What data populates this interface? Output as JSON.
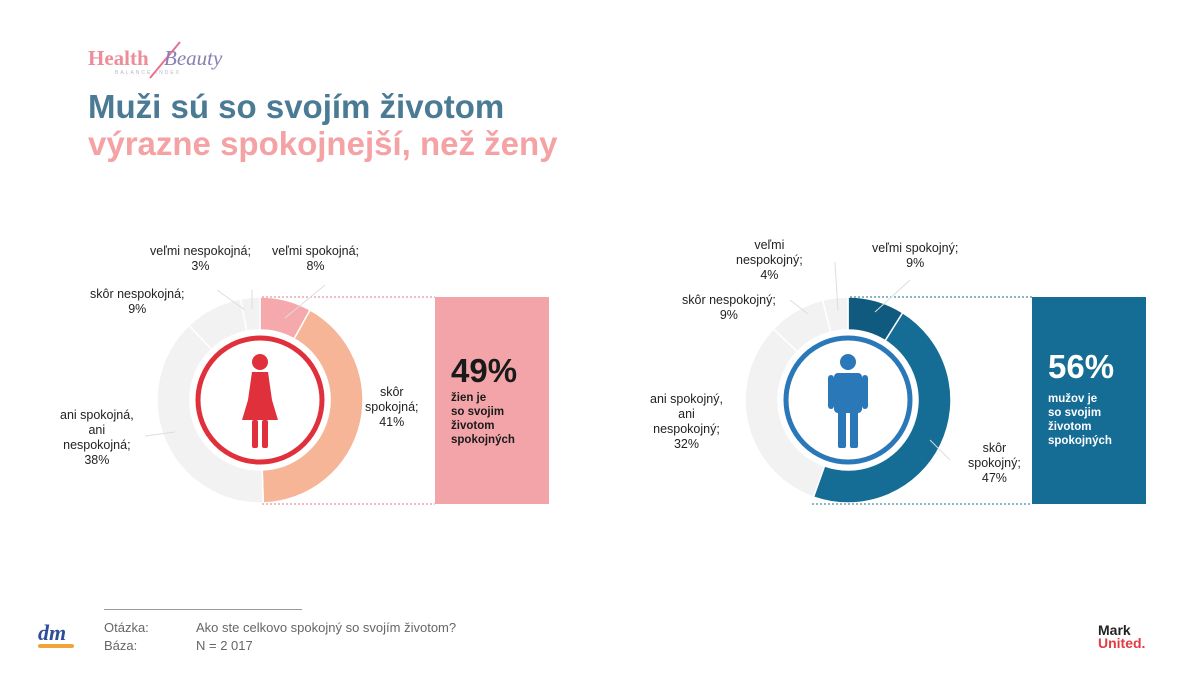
{
  "logo": {
    "health": "Health",
    "beauty": "Beauty",
    "subtitle": "BALANCE INDEX"
  },
  "title": {
    "line1": "Muži sú so svojím životom",
    "line2": "výrazne spokojnejší, než ženy"
  },
  "colors": {
    "title_blue": "#4b7a95",
    "title_pink": "#f4a2a4",
    "women_ring": "#e0303b",
    "men_ring": "#2b78b8",
    "women_box": "#f3a4a9",
    "men_box": "#156c95"
  },
  "chart_data": [
    {
      "type": "pie",
      "title": "Ženy",
      "categories": [
        "veľmi spokojná",
        "skôr spokojná",
        "ani spokojná, ani nespokojná",
        "skôr nespokojná",
        "veľmi nespokojná"
      ],
      "values": [
        8,
        41,
        38,
        9,
        3
      ],
      "colors": [
        "#f5a9ad",
        "#f6b597",
        "#f2f2f2",
        "#f2f2f2",
        "#f2f2f2"
      ],
      "labels": [
        [
          "veľmi spokojná;",
          "8%"
        ],
        [
          "skôr",
          "spokojná;",
          "41%"
        ],
        [
          "ani spokojná,",
          "ani",
          "nespokojná;",
          "38%"
        ],
        [
          "skôr nespokojná;",
          "9%"
        ],
        [
          "veľmi nespokojná;",
          "3%"
        ]
      ],
      "summary": {
        "value": "49%",
        "text": [
          "žien je",
          "so svojim",
          "životom",
          "spokojných"
        ]
      }
    },
    {
      "type": "pie",
      "title": "Muži",
      "categories": [
        "veľmi spokojný",
        "skôr spokojný",
        "ani spokojný, ani nespokojný",
        "skôr nespokojný",
        "veľmi nespokojný"
      ],
      "values": [
        9,
        47,
        32,
        9,
        4
      ],
      "colors": [
        "#0f5a7e",
        "#156c95",
        "#f2f2f2",
        "#f2f2f2",
        "#f2f2f2"
      ],
      "labels": [
        [
          "veľmi spokojný;",
          "9%"
        ],
        [
          "skôr",
          "spokojný;",
          "47%"
        ],
        [
          "ani spokojný,",
          "ani",
          "nespokojný;",
          "32%"
        ],
        [
          "skôr nespokojný;",
          "9%"
        ],
        [
          "veľmi",
          "nespokojný;",
          "4%"
        ]
      ],
      "summary": {
        "value": "56%",
        "text": [
          "mužov je",
          "so svojim",
          "životom",
          "spokojných"
        ]
      }
    }
  ],
  "footer": {
    "question_label": "Otázka:",
    "question": "Ako ste celkovo spokojný so svojím životom?",
    "base_label": "Báza:",
    "base": "N = 2 017",
    "dm": "dm",
    "mark": "Mark",
    "united": "United."
  }
}
